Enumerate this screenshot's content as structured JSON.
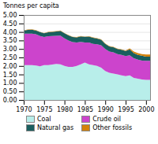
{
  "chart_data": {
    "type": "area",
    "stacked": true,
    "ylabel": "Tonnes per capita",
    "x": [
      1970,
      1971,
      1972,
      1973,
      1974,
      1975,
      1976,
      1977,
      1978,
      1979,
      1980,
      1981,
      1982,
      1983,
      1984,
      1985,
      1986,
      1987,
      1988,
      1989,
      1990,
      1991,
      1992,
      1993,
      1994,
      1995,
      1996,
      1997,
      1998,
      1999,
      2000,
      2001
    ],
    "series": [
      {
        "name": "Coal",
        "color": "#b8eeea",
        "values": [
          2.05,
          2.05,
          2.05,
          2.02,
          1.98,
          2.05,
          2.05,
          2.08,
          2.12,
          2.1,
          2.0,
          1.95,
          1.95,
          2.0,
          2.1,
          2.2,
          2.1,
          2.05,
          2.0,
          1.9,
          1.7,
          1.6,
          1.55,
          1.5,
          1.45,
          1.4,
          1.45,
          1.3,
          1.25,
          1.2,
          1.18,
          1.18
        ]
      },
      {
        "name": "Crude oil",
        "color": "#cc44cc",
        "values": [
          1.85,
          1.85,
          1.85,
          1.85,
          1.78,
          1.65,
          1.7,
          1.68,
          1.65,
          1.68,
          1.62,
          1.55,
          1.45,
          1.38,
          1.32,
          1.18,
          1.28,
          1.25,
          1.28,
          1.32,
          1.3,
          1.25,
          1.25,
          1.2,
          1.2,
          1.18,
          1.18,
          1.15,
          1.12,
          1.12,
          1.12,
          1.12
        ]
      },
      {
        "name": "Natural gas",
        "color": "#1a5f5f",
        "values": [
          0.18,
          0.22,
          0.23,
          0.22,
          0.23,
          0.22,
          0.23,
          0.25,
          0.26,
          0.28,
          0.3,
          0.3,
          0.3,
          0.3,
          0.32,
          0.33,
          0.35,
          0.36,
          0.33,
          0.32,
          0.3,
          0.3,
          0.3,
          0.3,
          0.3,
          0.3,
          0.34,
          0.3,
          0.28,
          0.28,
          0.25,
          0.25
        ]
      },
      {
        "name": "Other fossils",
        "color": "#d4820a",
        "values": [
          0.02,
          0.02,
          0.02,
          0.02,
          0.02,
          0.02,
          0.02,
          0.02,
          0.02,
          0.02,
          0.02,
          0.02,
          0.02,
          0.02,
          0.02,
          0.02,
          0.02,
          0.02,
          0.02,
          0.02,
          0.02,
          0.02,
          0.02,
          0.02,
          0.02,
          0.03,
          0.06,
          0.1,
          0.1,
          0.1,
          0.12,
          0.12
        ]
      }
    ],
    "xlim": [
      1970,
      2001
    ],
    "xticks": [
      1970,
      1975,
      1980,
      1985,
      1990,
      1995,
      2000
    ],
    "ylim": [
      0.0,
      5.0
    ],
    "yticks": [
      {
        "value": 0.0,
        "label": "0.00"
      },
      {
        "value": 0.5,
        "label": "0.50"
      },
      {
        "value": 1.0,
        "label": "1.00"
      },
      {
        "value": 1.5,
        "label": "1.50"
      },
      {
        "value": 2.0,
        "label": "2.00"
      },
      {
        "value": 2.5,
        "label": "2.50"
      },
      {
        "value": 3.0,
        "label": "3.00"
      },
      {
        "value": 3.5,
        "label": "3.50"
      },
      {
        "value": 4.0,
        "label": "4.00"
      },
      {
        "value": 4.5,
        "label": "4.50"
      },
      {
        "value": 5.0,
        "label": "5.00"
      }
    ],
    "grid": true,
    "legend": "bottom"
  }
}
